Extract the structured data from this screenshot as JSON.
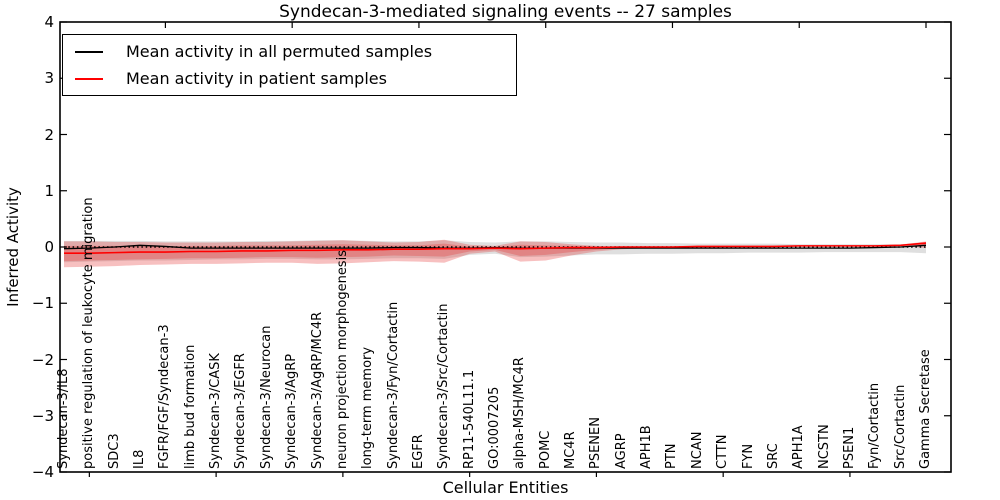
{
  "chart_data": {
    "type": "line",
    "title": "Syndecan-3-mediated signaling events -- 27 samples",
    "xlabel": "Cellular Entities",
    "ylabel": "Inferred Activity",
    "ylim": [
      -4,
      4
    ],
    "yticks": [
      4,
      3,
      2,
      1,
      0,
      -1,
      -2,
      -3,
      -4
    ],
    "yticklabels": [
      "4",
      "3",
      "2",
      "1",
      "0",
      "−1",
      "−2",
      "−3",
      "−4"
    ],
    "grid": false,
    "legend_position": "upper left",
    "zero_line": 0,
    "categories": [
      "Syndecan-3/IL8",
      "positive regulation of leukocyte migration",
      "SDC3",
      "IL8",
      "FGFR/FGF/Syndecan-3",
      "limb bud formation",
      "Syndecan-3/CASK",
      "Syndecan-3/EGFR",
      "Syndecan-3/Neurocan",
      "Syndecan-3/AgRP",
      "Syndecan-3/AgRP/MC4R",
      "neuron projection morphogenesis",
      "long-term memory",
      "Syndecan-3/Fyn/Cortactin",
      "EGFR",
      "Syndecan-3/Src/Cortactin",
      "RP11-540L11.1",
      "GO:0007205",
      "alpha-MSH/MC4R",
      "POMC",
      "MC4R",
      "PSENEN",
      "AGRP",
      "APH1B",
      "PTN",
      "NCAN",
      "CTTN",
      "FYN",
      "SRC",
      "APH1A",
      "NCSTN",
      "PSEN1",
      "Fyn/Cortactin",
      "Src/Cortactin",
      "Gamma Secretase"
    ],
    "series": [
      {
        "name": "Mean activity in all permuted samples",
        "color": "#000000",
        "values": [
          -0.03,
          -0.02,
          0,
          0.03,
          0.01,
          -0.02,
          -0.02,
          -0.02,
          -0.02,
          -0.02,
          -0.02,
          -0.02,
          -0.02,
          -0.01,
          -0.01,
          -0.02,
          -0.02,
          -0.01,
          -0.02,
          -0.02,
          -0.02,
          -0.02,
          -0.02,
          -0.02,
          -0.02,
          -0.02,
          -0.02,
          -0.02,
          -0.02,
          -0.02,
          -0.02,
          -0.02,
          -0.01,
          0,
          0.03
        ]
      },
      {
        "name": "Mean activity in patient samples",
        "color": "#ff0000",
        "values": [
          -0.11,
          -0.11,
          -0.1,
          -0.09,
          -0.09,
          -0.08,
          -0.08,
          -0.07,
          -0.07,
          -0.06,
          -0.06,
          -0.05,
          -0.05,
          -0.04,
          -0.04,
          -0.03,
          -0.03,
          -0.02,
          -0.03,
          -0.02,
          -0.01,
          -0.01,
          0,
          0,
          0,
          0.01,
          0.01,
          0.01,
          0.01,
          0.02,
          0.02,
          0.02,
          0.02,
          0.03,
          0.07
        ]
      }
    ],
    "bands": [
      {
        "name": "permuted-samples-band",
        "color": "rgba(110,110,110,0.22)",
        "upper": [
          0.11,
          0.11,
          0.11,
          0.11,
          0.1,
          0.1,
          0.1,
          0.1,
          0.11,
          0.11,
          0.12,
          0.12,
          0.11,
          0.1,
          0.1,
          0.12,
          0.09,
          0.08,
          0.1,
          0.1,
          0.09,
          0.08,
          0.08,
          0.07,
          0.07,
          0.06,
          0.06,
          0.06,
          0.06,
          0.05,
          0.05,
          0.05,
          0.05,
          0.05,
          0.08
        ],
        "lower": [
          -0.27,
          -0.26,
          -0.25,
          -0.24,
          -0.24,
          -0.23,
          -0.22,
          -0.22,
          -0.21,
          -0.21,
          -0.22,
          -0.22,
          -0.21,
          -0.2,
          -0.2,
          -0.21,
          -0.14,
          -0.12,
          -0.18,
          -0.17,
          -0.15,
          -0.13,
          -0.13,
          -0.12,
          -0.12,
          -0.11,
          -0.11,
          -0.1,
          -0.1,
          -0.1,
          -0.09,
          -0.09,
          -0.09,
          -0.09,
          -0.11
        ]
      },
      {
        "name": "patient-samples-band-outer",
        "color": "rgba(227,45,45,0.30)",
        "upper": [
          0.1,
          0.1,
          0.09,
          0.09,
          0.08,
          0.08,
          0.08,
          0.09,
          0.09,
          0.1,
          0.11,
          0.12,
          0.1,
          0.08,
          0.09,
          0.13,
          0.04,
          0.02,
          0.1,
          0.09,
          0.05,
          0.02,
          0.01,
          0.01,
          0.01,
          0.02,
          0.02,
          0.02,
          0.02,
          0.03,
          0.03,
          0.03,
          0.03,
          0.04,
          0.1
        ],
        "lower": [
          -0.36,
          -0.35,
          -0.34,
          -0.32,
          -0.31,
          -0.3,
          -0.3,
          -0.29,
          -0.28,
          -0.28,
          -0.3,
          -0.29,
          -0.27,
          -0.25,
          -0.26,
          -0.28,
          -0.12,
          -0.08,
          -0.26,
          -0.24,
          -0.15,
          -0.08,
          -0.04,
          -0.02,
          -0.01,
          -0.01,
          0,
          0,
          0,
          0.01,
          0.01,
          0.01,
          0.01,
          0.02,
          -0.02
        ]
      },
      {
        "name": "patient-samples-band-inner",
        "color": "rgba(227,45,45,0.30)",
        "upper": [
          0.02,
          0.02,
          0.02,
          0.02,
          0.01,
          0.02,
          0.02,
          0.03,
          0.03,
          0.03,
          0.04,
          0.05,
          0.04,
          0.03,
          0.03,
          0.06,
          0.01,
          0,
          0.04,
          0.03,
          0.02,
          0.01,
          0,
          0,
          0.01,
          0.01,
          0.01,
          0.01,
          0.02,
          0.02,
          0.02,
          0.02,
          0.02,
          0.03,
          0.09
        ],
        "lower": [
          -0.25,
          -0.24,
          -0.23,
          -0.22,
          -0.21,
          -0.2,
          -0.2,
          -0.19,
          -0.18,
          -0.18,
          -0.19,
          -0.18,
          -0.17,
          -0.15,
          -0.16,
          -0.17,
          -0.08,
          -0.05,
          -0.16,
          -0.14,
          -0.09,
          -0.05,
          -0.02,
          -0.01,
          -0.01,
          0,
          0,
          0,
          0,
          0.01,
          0.01,
          0.01,
          0.01,
          0.02,
          0.04
        ]
      }
    ]
  }
}
